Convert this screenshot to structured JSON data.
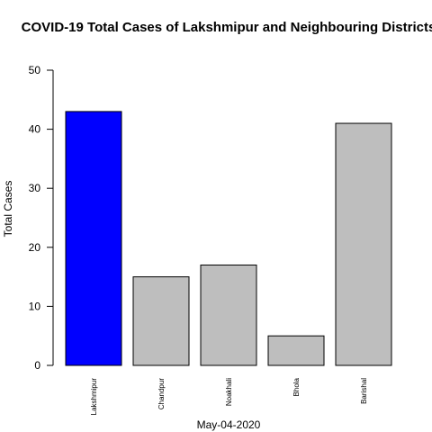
{
  "chart_data": {
    "type": "bar",
    "title": "COVID-19 Total Cases of Lakshmipur and Neighbouring Districts",
    "xlabel": "May-04-2020",
    "ylabel": "Total Cases",
    "categories": [
      "Lakshmipur",
      "Chandpur",
      "Noakhali",
      "Bhola",
      "Barishal"
    ],
    "values": [
      43,
      15,
      17,
      5,
      41
    ],
    "bar_colors": [
      "#0000FF",
      "#BEBEBE",
      "#BEBEBE",
      "#BEBEBE",
      "#BEBEBE"
    ],
    "ylim": [
      0,
      50
    ],
    "yticks": [
      0,
      10,
      20,
      30,
      40,
      50
    ],
    "grid": false,
    "legend": "none"
  }
}
